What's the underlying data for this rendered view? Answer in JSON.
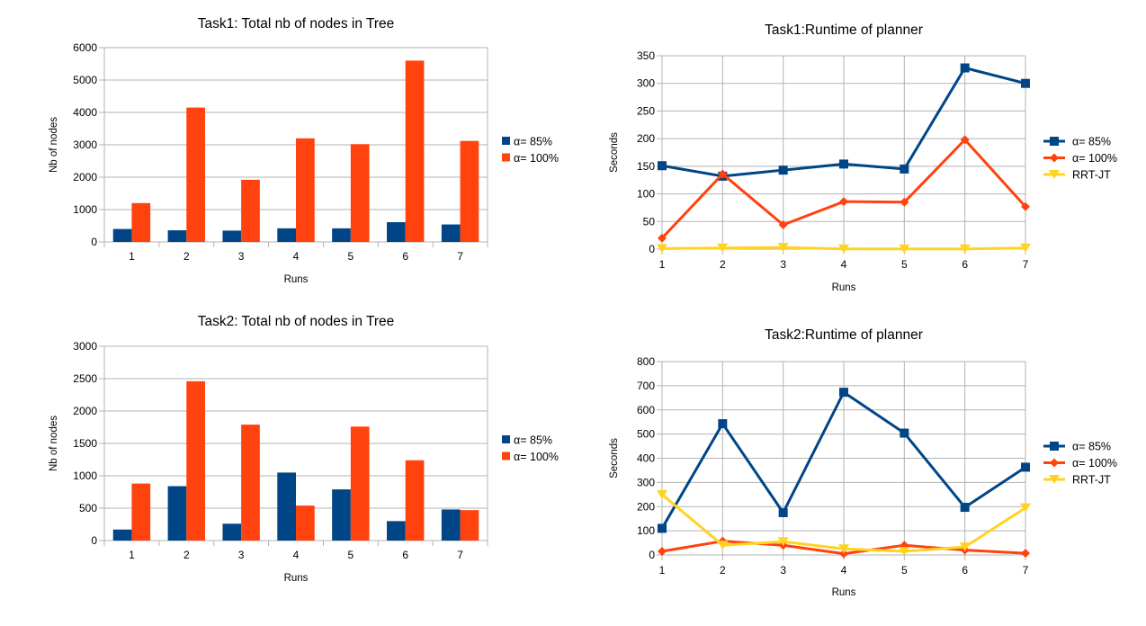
{
  "colors": {
    "a85": "#004586",
    "a100": "#ff420e",
    "rrt": "#ffd320",
    "grid": "#b3b3b3",
    "axis": "#b3b3b3"
  },
  "chart_data": [
    {
      "type": "bar",
      "title": "Task1: Total nb of nodes in Tree",
      "xlabel": "Runs",
      "ylabel": "Nb of nodes",
      "categories": [
        "1",
        "2",
        "3",
        "4",
        "5",
        "6",
        "7"
      ],
      "ylim": [
        0,
        6000
      ],
      "yticks": [
        0,
        1000,
        2000,
        3000,
        4000,
        5000,
        6000
      ],
      "grid": true,
      "legend": "right",
      "series": [
        {
          "name": "α= 85%",
          "color": "#004586",
          "values": [
            400,
            360,
            350,
            420,
            420,
            610,
            540
          ]
        },
        {
          "name": "α= 100%",
          "color": "#ff420e",
          "values": [
            1200,
            4150,
            1920,
            3200,
            3020,
            5600,
            3120
          ]
        }
      ]
    },
    {
      "type": "line",
      "title": "Task1:Runtime of planner",
      "xlabel": "Runs",
      "ylabel": "Seconds",
      "x": [
        "1",
        "2",
        "3",
        "4",
        "5",
        "6",
        "7"
      ],
      "ylim": [
        0,
        350
      ],
      "yticks": [
        0,
        50,
        100,
        150,
        200,
        250,
        300,
        350
      ],
      "grid": true,
      "legend": "right",
      "series": [
        {
          "name": "α= 85%",
          "color": "#004586",
          "marker": "square",
          "values": [
            151,
            132,
            143,
            154,
            145,
            328,
            300
          ]
        },
        {
          "name": "α= 100%",
          "color": "#ff420e",
          "marker": "diamond",
          "values": [
            20,
            136,
            44,
            86,
            85,
            198,
            77
          ]
        },
        {
          "name": "RRT-JT",
          "color": "#ffd320",
          "marker": "triangle-down",
          "values": [
            1,
            2,
            3,
            0.5,
            0.5,
            0.5,
            2
          ]
        }
      ]
    },
    {
      "type": "bar",
      "title": "Task2: Total nb of nodes in Tree",
      "xlabel": "Runs",
      "ylabel": "Nb of nodes",
      "categories": [
        "1",
        "2",
        "3",
        "4",
        "5",
        "6",
        "7"
      ],
      "ylim": [
        0,
        3000
      ],
      "yticks": [
        0,
        500,
        1000,
        1500,
        2000,
        2500,
        3000
      ],
      "grid": true,
      "legend": "right",
      "series": [
        {
          "name": "α= 85%",
          "color": "#004586",
          "values": [
            170,
            840,
            260,
            1050,
            790,
            300,
            480
          ]
        },
        {
          "name": "α= 100%",
          "color": "#ff420e",
          "values": [
            880,
            2460,
            1790,
            540,
            1760,
            1240,
            470
          ]
        }
      ]
    },
    {
      "type": "line",
      "title": "Task2:Runtime of planner",
      "xlabel": "Runs",
      "ylabel": "Seconds",
      "x": [
        "1",
        "2",
        "3",
        "4",
        "5",
        "6",
        "7"
      ],
      "ylim": [
        0,
        800
      ],
      "yticks": [
        0,
        100,
        200,
        300,
        400,
        500,
        600,
        700,
        800
      ],
      "grid": true,
      "legend": "right",
      "series": [
        {
          "name": "α= 85%",
          "color": "#004586",
          "marker": "square",
          "values": [
            110,
            543,
            175,
            673,
            504,
            197,
            363
          ]
        },
        {
          "name": "α= 100%",
          "color": "#ff420e",
          "marker": "diamond",
          "values": [
            15,
            57,
            40,
            5,
            40,
            20,
            7
          ]
        },
        {
          "name": "RRT-JT",
          "color": "#ffd320",
          "marker": "triangle-down",
          "values": [
            250,
            40,
            55,
            25,
            15,
            33,
            195
          ]
        }
      ]
    }
  ]
}
